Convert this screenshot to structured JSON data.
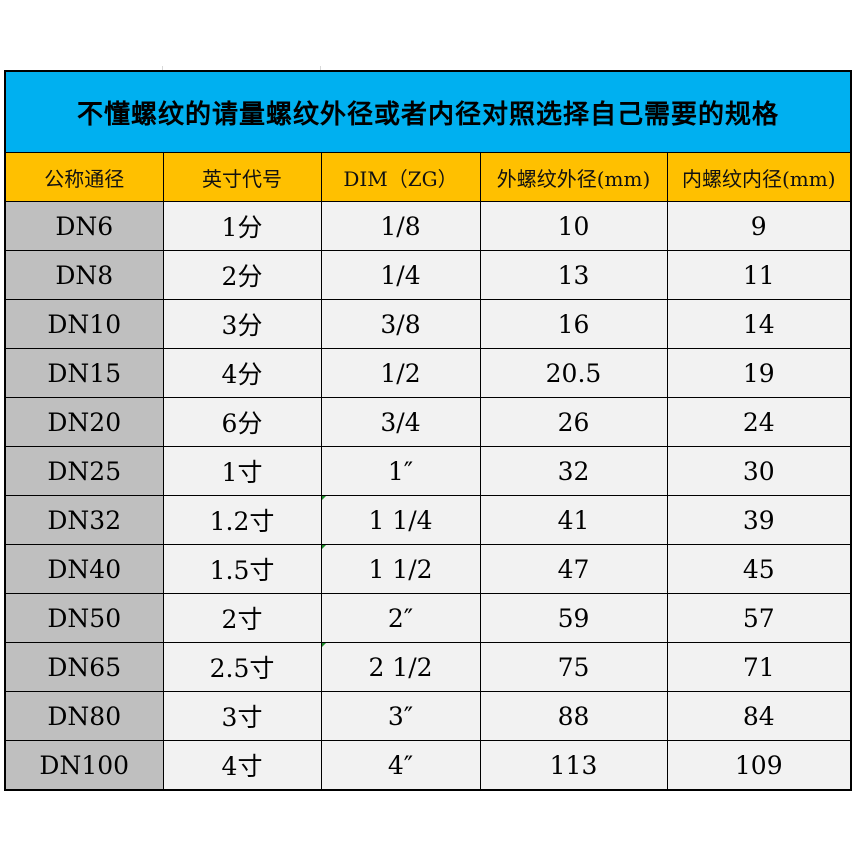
{
  "title": "不懂螺纹的请量螺纹外径或者内径对照选择自己需要的规格",
  "colors": {
    "title_bg": "#00b0f0",
    "header_bg": "#ffc000",
    "first_col_bg": "#bfbfbf",
    "cell_bg": "#f2f2f2"
  },
  "headers": [
    "公称通径",
    "英寸代号",
    "DIM（ZG）",
    "外螺纹外径(mm)",
    "内螺纹内径(mm)"
  ],
  "rows": [
    {
      "dn": "DN6",
      "inch": "1分",
      "dim": "1/8",
      "outer": "10",
      "inner": "9"
    },
    {
      "dn": "DN8",
      "inch": "2分",
      "dim": "1/4",
      "outer": "13",
      "inner": "11"
    },
    {
      "dn": "DN10",
      "inch": "3分",
      "dim": "3/8",
      "outer": "16",
      "inner": "14"
    },
    {
      "dn": "DN15",
      "inch": "4分",
      "dim": "1/2",
      "outer": "20.5",
      "inner": "19"
    },
    {
      "dn": "DN20",
      "inch": "6分",
      "dim": "3/4",
      "outer": "26",
      "inner": "24"
    },
    {
      "dn": "DN25",
      "inch": "1寸",
      "dim": "1″",
      "outer": "32",
      "inner": "30"
    },
    {
      "dn": "DN32",
      "inch": "1.2寸",
      "dim": "1 1/4",
      "outer": "41",
      "inner": "39"
    },
    {
      "dn": "DN40",
      "inch": "1.5寸",
      "dim": "1 1/2",
      "outer": "47",
      "inner": "45"
    },
    {
      "dn": "DN50",
      "inch": "2寸",
      "dim": "2″",
      "outer": "59",
      "inner": "57"
    },
    {
      "dn": "DN65",
      "inch": "2.5寸",
      "dim": "2 1/2",
      "outer": "75",
      "inner": "71"
    },
    {
      "dn": "DN80",
      "inch": "3寸",
      "dim": "3″",
      "outer": "88",
      "inner": "84"
    },
    {
      "dn": "DN100",
      "inch": "4寸",
      "dim": "4″",
      "outer": "113",
      "inner": "109"
    }
  ]
}
